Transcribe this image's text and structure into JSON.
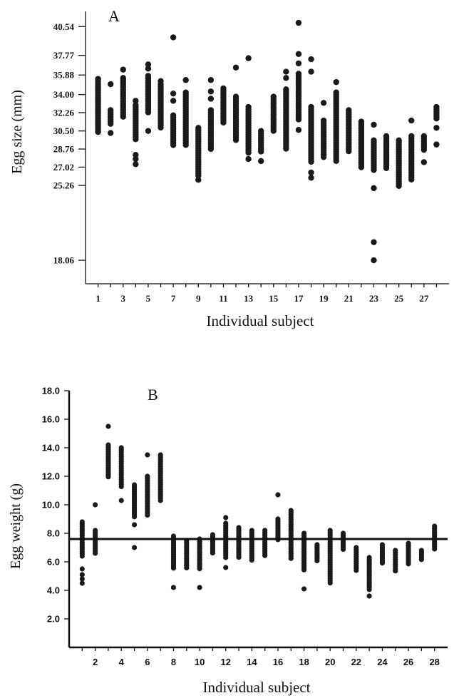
{
  "chart_data": [
    {
      "type": "scatter",
      "panel_label": "A",
      "xlabel": "Individual subject",
      "ylabel": "Egg size (mm)",
      "xlim": [
        0,
        29
      ],
      "ylim": [
        15.8,
        42.0
      ],
      "x_ticks": [
        1,
        3,
        5,
        7,
        9,
        11,
        13,
        15,
        17,
        19,
        21,
        23,
        25,
        27
      ],
      "y_ticks": [
        "18.06",
        "25.26",
        "27.02",
        "28.76",
        "30.50",
        "32.26",
        "34.00",
        "35.88",
        "37.77",
        "40.54"
      ],
      "grid": false,
      "legend": "none",
      "color": "#1a1a1a",
      "subjects": [
        {
          "x": 1,
          "ranges": [
            [
              30.4,
              35.5
            ]
          ],
          "points": [
            30.4,
            35.5
          ]
        },
        {
          "x": 2,
          "ranges": [
            [
              31.0,
              32.5
            ]
          ],
          "points": [
            30.3,
            35.0
          ]
        },
        {
          "x": 3,
          "ranges": [
            [
              31.8,
              35.6
            ]
          ],
          "points": [
            36.4
          ]
        },
        {
          "x": 4,
          "ranges": [
            [
              29.5,
              33.0
            ]
          ],
          "points": [
            28.2,
            27.8,
            27.3,
            33.4
          ]
        },
        {
          "x": 5,
          "ranges": [
            [
              32.2,
              35.8
            ]
          ],
          "points": [
            30.5,
            36.5,
            36.9
          ]
        },
        {
          "x": 6,
          "ranges": [
            [
              30.8,
              35.0
            ]
          ],
          "points": [
            35.3
          ]
        },
        {
          "x": 7,
          "ranges": [
            [
              29.0,
              32.0
            ]
          ],
          "points": [
            33.4,
            34.1,
            39.5
          ]
        },
        {
          "x": 8,
          "ranges": [
            [
              29.0,
              34.2
            ]
          ],
          "points": [
            35.4
          ]
        },
        {
          "x": 9,
          "ranges": [
            [
              26.0,
              30.8
            ]
          ],
          "points": [
            25.8
          ]
        },
        {
          "x": 10,
          "ranges": [
            [
              28.6,
              32.5
            ]
          ],
          "points": [
            33.6,
            34.3,
            35.4
          ]
        },
        {
          "x": 11,
          "ranges": [
            [
              31.3,
              34.6
            ]
          ],
          "points": []
        },
        {
          "x": 12,
          "ranges": [
            [
              29.6,
              33.8
            ]
          ],
          "points": [
            36.6
          ]
        },
        {
          "x": 13,
          "ranges": [
            [
              28.2,
              32.8
            ]
          ],
          "points": [
            27.8,
            37.5
          ]
        },
        {
          "x": 14,
          "ranges": [
            [
              28.4,
              30.5
            ]
          ],
          "points": [
            27.6
          ]
        },
        {
          "x": 15,
          "ranges": [
            [
              30.5,
              33.8
            ]
          ],
          "points": []
        },
        {
          "x": 16,
          "ranges": [
            [
              28.7,
              34.5
            ]
          ],
          "points": [
            35.6,
            36.2
          ]
        },
        {
          "x": 17,
          "ranges": [
            [
              31.5,
              36.0
            ]
          ],
          "points": [
            30.6,
            37.0,
            37.9,
            40.9
          ]
        },
        {
          "x": 18,
          "ranges": [
            [
              27.5,
              32.8
            ]
          ],
          "points": [
            26.0,
            26.5,
            36.2,
            37.4
          ]
        },
        {
          "x": 19,
          "ranges": [
            [
              27.8,
              31.5
            ]
          ],
          "points": [
            33.2
          ]
        },
        {
          "x": 20,
          "ranges": [
            [
              27.6,
              34.2
            ]
          ],
          "points": [
            35.2
          ]
        },
        {
          "x": 21,
          "ranges": [
            [
              28.5,
              32.5
            ]
          ],
          "points": []
        },
        {
          "x": 22,
          "ranges": [
            [
              27.0,
              31.4
            ]
          ],
          "points": []
        },
        {
          "x": 23,
          "ranges": [
            [
              26.6,
              29.6
            ]
          ],
          "points": [
            25.0,
            31.1,
            19.8,
            18.06
          ]
        },
        {
          "x": 24,
          "ranges": [
            [
              26.8,
              30.0
            ]
          ],
          "points": []
        },
        {
          "x": 25,
          "ranges": [
            [
              25.0,
              29.6
            ]
          ],
          "points": []
        },
        {
          "x": 26,
          "ranges": [
            [
              25.8,
              30.0
            ]
          ],
          "points": [
            31.5
          ]
        },
        {
          "x": 27,
          "ranges": [
            [
              28.5,
              30.0
            ]
          ],
          "points": [
            27.5
          ]
        },
        {
          "x": 28,
          "ranges": [
            [
              31.5,
              32.8
            ]
          ],
          "points": [
            29.2,
            30.8
          ]
        }
      ]
    },
    {
      "type": "scatter",
      "panel_label": "B",
      "xlabel": "Individual subject",
      "ylabel": "Egg weight (g)",
      "xlim": [
        0,
        29
      ],
      "ylim": [
        0,
        18.0
      ],
      "x_ticks": [
        2,
        4,
        6,
        8,
        10,
        12,
        14,
        16,
        18,
        20,
        22,
        24,
        26,
        28
      ],
      "y_ticks": [
        "2.0",
        "4.0",
        "6.0",
        "8.0",
        "10.0",
        "12.0",
        "14.0",
        "16.0",
        "18.0"
      ],
      "reference_line_y": 7.6,
      "grid": false,
      "legend": "none",
      "color": "#1a1a1a",
      "subjects": [
        {
          "x": 1,
          "ranges": [
            [
              6.3,
              8.8
            ]
          ],
          "points": [
            4.5,
            4.8,
            5.1,
            5.5
          ]
        },
        {
          "x": 2,
          "ranges": [
            [
              6.5,
              8.2
            ]
          ],
          "points": [
            10.0
          ]
        },
        {
          "x": 3,
          "ranges": [
            [
              11.9,
              14.2
            ]
          ],
          "points": [
            15.5
          ]
        },
        {
          "x": 4,
          "ranges": [
            [
              11.2,
              14.0
            ]
          ],
          "points": [
            10.3
          ]
        },
        {
          "x": 5,
          "ranges": [
            [
              9.0,
              11.4
            ]
          ],
          "points": [
            7.0,
            8.6
          ]
        },
        {
          "x": 6,
          "ranges": [
            [
              9.2,
              12.0
            ]
          ],
          "points": [
            13.5
          ]
        },
        {
          "x": 7,
          "ranges": [
            [
              10.2,
              13.5
            ]
          ],
          "points": []
        },
        {
          "x": 8,
          "ranges": [
            [
              5.4,
              7.8
            ]
          ],
          "points": [
            4.2
          ]
        },
        {
          "x": 9,
          "ranges": [
            [
              5.5,
              7.5
            ]
          ],
          "points": []
        },
        {
          "x": 10,
          "ranges": [
            [
              5.5,
              7.6
            ]
          ],
          "points": [
            4.2
          ]
        },
        {
          "x": 11,
          "ranges": [
            [
              6.5,
              7.9
            ]
          ],
          "points": []
        },
        {
          "x": 12,
          "ranges": [
            [
              6.2,
              8.7
            ]
          ],
          "points": [
            5.6,
            9.1
          ]
        },
        {
          "x": 13,
          "ranges": [
            [
              6.2,
              8.4
            ]
          ],
          "points": []
        },
        {
          "x": 14,
          "ranges": [
            [
              6.0,
              8.2
            ]
          ],
          "points": []
        },
        {
          "x": 15,
          "ranges": [
            [
              6.4,
              8.2
            ]
          ],
          "points": []
        },
        {
          "x": 16,
          "ranges": [
            [
              7.4,
              9.0
            ]
          ],
          "points": [
            10.7
          ]
        },
        {
          "x": 17,
          "ranges": [
            [
              6.2,
              9.6
            ]
          ],
          "points": []
        },
        {
          "x": 18,
          "ranges": [
            [
              5.3,
              8.0
            ]
          ],
          "points": [
            4.1
          ]
        },
        {
          "x": 19,
          "ranges": [
            [
              6.0,
              7.2
            ]
          ],
          "points": []
        },
        {
          "x": 20,
          "ranges": [
            [
              4.5,
              8.2
            ]
          ],
          "points": []
        },
        {
          "x": 21,
          "ranges": [
            [
              6.8,
              8.0
            ]
          ],
          "points": []
        },
        {
          "x": 22,
          "ranges": [
            [
              5.3,
              7.0
            ]
          ],
          "points": []
        },
        {
          "x": 23,
          "ranges": [
            [
              4.0,
              6.3
            ]
          ],
          "points": [
            3.6
          ]
        },
        {
          "x": 24,
          "ranges": [
            [
              5.8,
              7.2
            ]
          ],
          "points": []
        },
        {
          "x": 25,
          "ranges": [
            [
              5.3,
              6.8
            ]
          ],
          "points": []
        },
        {
          "x": 26,
          "ranges": [
            [
              5.8,
              7.3
            ]
          ],
          "points": []
        },
        {
          "x": 27,
          "ranges": [
            [
              6.0,
              6.8
            ]
          ],
          "points": []
        },
        {
          "x": 28,
          "ranges": [
            [
              6.8,
              8.5
            ]
          ],
          "points": []
        }
      ]
    }
  ]
}
